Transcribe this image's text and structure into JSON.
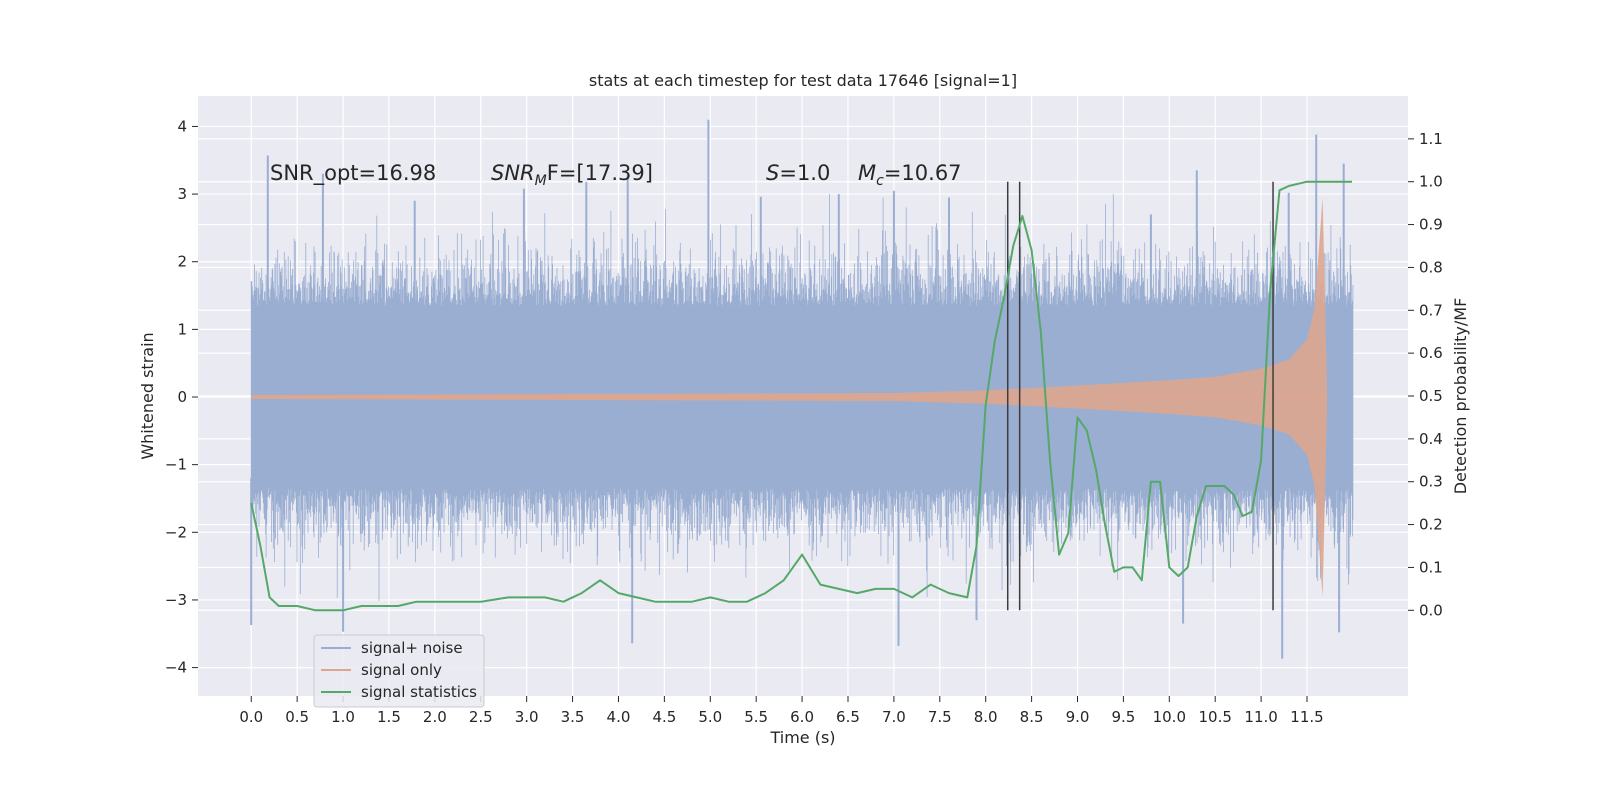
{
  "chart_data": {
    "type": "line",
    "title": "stats at each timestep for test data 17646 [signal=1]",
    "xlabel": "Time (s)",
    "ylabel": "Whitened strain",
    "ylabel_right": "Detection probability/MF",
    "xlim": [
      -0.58,
      12.6
    ],
    "ylim": [
      -4.42,
      4.45
    ],
    "ylim_right": [
      -0.2,
      1.2
    ],
    "x_ticks": [
      "0.0",
      "0.5",
      "1.0",
      "1.5",
      "2.0",
      "2.5",
      "3.0",
      "3.5",
      "4.0",
      "4.5",
      "5.0",
      "5.5",
      "6.0",
      "6.5",
      "7.0",
      "7.5",
      "8.0",
      "8.5",
      "9.0",
      "9.5",
      "10.0",
      "10.5",
      "11.0",
      "11.5"
    ],
    "y_ticks": [
      "4",
      "3",
      "2",
      "1",
      "0",
      "−1",
      "−2",
      "−3",
      "−4"
    ],
    "y_right_ticks": [
      "1.1",
      "1.0",
      "0.9",
      "0.8",
      "0.7",
      "0.6",
      "0.5",
      "0.4",
      "0.3",
      "0.2",
      "0.1",
      "0.0"
    ],
    "grid": true,
    "legend_position": "lower-left",
    "colors": {
      "noise": "#9aaed2",
      "signal": "#dda68e",
      "stats": "#55a868",
      "vline": "#3c3c3c",
      "background": "#eaeaf2"
    },
    "annotations": [
      {
        "text": "SNR_opt=16.98",
        "x": 0.2,
        "y": 3.26
      },
      {
        "text": "SNR",
        "sub": "M",
        "rest": "F=[17.39]",
        "x": 2.6,
        "y": 3.26
      },
      {
        "text": "S",
        "rest": "=1.0",
        "x": 5.6,
        "y": 3.26
      },
      {
        "text": "M",
        "sub": "c",
        "rest": "=10.67",
        "x": 6.6,
        "y": 3.26
      }
    ],
    "vertical_lines": [
      8.24,
      8.37,
      11.13
    ],
    "series": [
      {
        "name": "signal+ noise",
        "description_fields": {
          "x_start": 0.0,
          "x_end": 12.0
        },
        "upper_peaks": [
          [
            0.18,
            3.57
          ],
          [
            0.78,
            3.3
          ],
          [
            1.78,
            2.9
          ],
          [
            2.97,
            3.08
          ],
          [
            3.65,
            3.18
          ],
          [
            4.1,
            3.3
          ],
          [
            4.98,
            4.1
          ],
          [
            5.55,
            2.96
          ],
          [
            6.4,
            3.0
          ],
          [
            7.0,
            3.05
          ],
          [
            7.6,
            2.95
          ],
          [
            9.8,
            2.7
          ],
          [
            10.3,
            3.35
          ],
          [
            11.3,
            3.02
          ],
          [
            11.6,
            3.88
          ],
          [
            11.9,
            3.45
          ]
        ],
        "lower_peaks": [
          [
            0.0,
            -3.37
          ],
          [
            1.0,
            -3.47
          ],
          [
            4.15,
            -3.64
          ],
          [
            7.05,
            -3.68
          ],
          [
            7.9,
            -3.3
          ],
          [
            10.15,
            -3.35
          ],
          [
            11.23,
            -3.87
          ],
          [
            11.85,
            -3.48
          ]
        ]
      },
      {
        "name": "signal only",
        "x": [
          0.0,
          7.0,
          8.0,
          9.0,
          10.0,
          10.5,
          11.0,
          11.3,
          11.5,
          11.58,
          11.62,
          11.67,
          11.72
        ],
        "envelope": [
          0.03,
          0.06,
          0.1,
          0.17,
          0.25,
          0.3,
          0.42,
          0.55,
          0.85,
          1.3,
          2.0,
          2.95,
          0.05
        ]
      },
      {
        "name": "signal statistics",
        "x": [
          0.0,
          0.1,
          0.2,
          0.3,
          0.5,
          0.7,
          1.0,
          1.2,
          1.4,
          1.6,
          1.8,
          2.0,
          2.2,
          2.5,
          2.8,
          3.0,
          3.2,
          3.4,
          3.6,
          3.8,
          4.0,
          4.2,
          4.4,
          4.6,
          4.8,
          5.0,
          5.2,
          5.4,
          5.6,
          5.8,
          6.0,
          6.2,
          6.4,
          6.6,
          6.8,
          7.0,
          7.2,
          7.4,
          7.6,
          7.8,
          7.9,
          8.0,
          8.1,
          8.2,
          8.3,
          8.4,
          8.5,
          8.6,
          8.7,
          8.8,
          8.9,
          9.0,
          9.1,
          9.2,
          9.3,
          9.4,
          9.5,
          9.6,
          9.7,
          9.8,
          9.9,
          10.0,
          10.1,
          10.2,
          10.3,
          10.4,
          10.5,
          10.6,
          10.7,
          10.8,
          10.9,
          11.0,
          11.1,
          11.2,
          11.3,
          11.5,
          11.7,
          11.9,
          11.99
        ],
        "values": [
          0.25,
          0.15,
          0.03,
          0.01,
          0.01,
          0.0,
          0.0,
          0.01,
          0.01,
          0.01,
          0.02,
          0.02,
          0.02,
          0.02,
          0.03,
          0.03,
          0.03,
          0.02,
          0.04,
          0.07,
          0.04,
          0.03,
          0.02,
          0.02,
          0.02,
          0.03,
          0.02,
          0.02,
          0.04,
          0.07,
          0.13,
          0.06,
          0.05,
          0.04,
          0.05,
          0.05,
          0.03,
          0.06,
          0.04,
          0.03,
          0.15,
          0.48,
          0.63,
          0.73,
          0.85,
          0.92,
          0.84,
          0.65,
          0.35,
          0.13,
          0.18,
          0.45,
          0.42,
          0.33,
          0.2,
          0.09,
          0.1,
          0.1,
          0.07,
          0.3,
          0.3,
          0.1,
          0.08,
          0.1,
          0.22,
          0.29,
          0.29,
          0.29,
          0.27,
          0.22,
          0.23,
          0.35,
          0.75,
          0.98,
          0.99,
          1.0,
          1.0,
          1.0,
          1.0
        ]
      }
    ]
  }
}
